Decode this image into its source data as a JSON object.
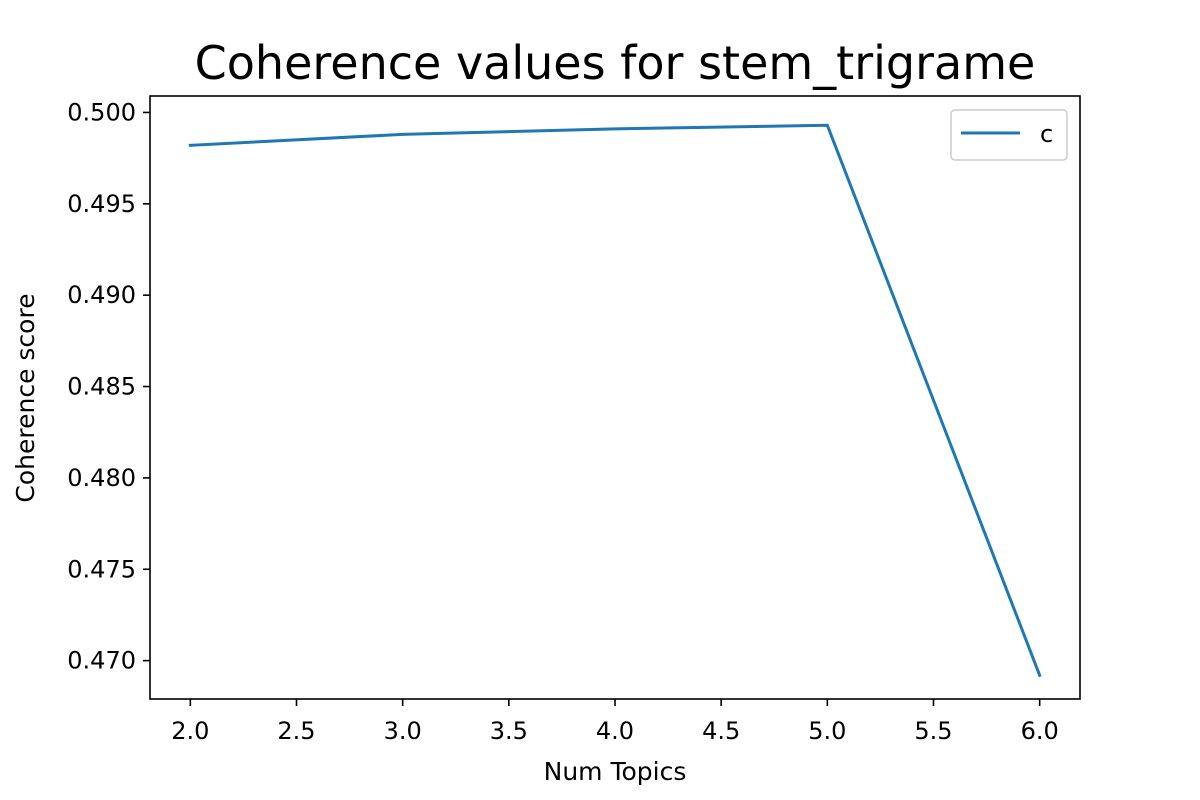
{
  "chart_data": {
    "type": "line",
    "title": "Coherence values for stem_trigrame",
    "xlabel": "Num Topics",
    "ylabel": "Coherence score",
    "x": [
      2,
      3,
      4,
      5,
      6
    ],
    "series": [
      {
        "name": "c",
        "values": [
          0.4982,
          0.4988,
          0.4991,
          0.4993,
          0.4692
        ],
        "color": "#1f77b4"
      }
    ],
    "xlim": [
      1.81,
      6.19
    ],
    "ylim": [
      0.4679,
      0.5009
    ],
    "xticks": [
      "2.0",
      "2.5",
      "3.0",
      "3.5",
      "4.0",
      "4.5",
      "5.0",
      "5.5",
      "6.0"
    ],
    "yticks": [
      "0.470",
      "0.475",
      "0.480",
      "0.485",
      "0.490",
      "0.495",
      "0.500"
    ],
    "grid": false,
    "legend": "top-right"
  }
}
